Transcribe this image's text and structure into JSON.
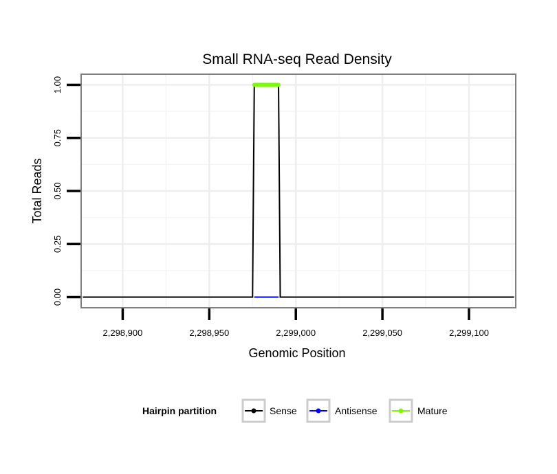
{
  "chart_data": {
    "type": "line",
    "title": "Small RNA-seq Read Density",
    "xlabel": "Genomic Position",
    "ylabel": "Total Reads",
    "xlim": [
      2298876,
      2299127
    ],
    "ylim": [
      -0.05,
      1.05
    ],
    "x_ticks": [
      2298900,
      2298950,
      2299000,
      2299050,
      2299100
    ],
    "x_tick_labels": [
      "2,298,900",
      "2,298,950",
      "2,299,000",
      "2,299,050",
      "2,299,100"
    ],
    "y_ticks": [
      0,
      0.25,
      0.5,
      0.75,
      1.0
    ],
    "y_tick_labels": [
      "0.00",
      "0.25",
      "0.50",
      "0.75",
      "1.00"
    ],
    "grid": true,
    "series": [
      {
        "name": "Sense",
        "color": "#000000",
        "x": [
          2298877,
          2298975,
          2298976,
          2298990,
          2298991,
          2299126
        ],
        "y": [
          0,
          0,
          1,
          1,
          0,
          0
        ]
      },
      {
        "name": "Antisense",
        "color": "#0000ff",
        "x": [
          2298976,
          2298990
        ],
        "y": [
          0,
          0
        ]
      },
      {
        "name": "Mature",
        "color": "#7cfc00",
        "x": [
          2298976,
          2298990
        ],
        "y": [
          1,
          1
        ]
      }
    ],
    "legend": {
      "title": "Hairpin partition",
      "position": "bottom",
      "entries": [
        "Sense",
        "Antisense",
        "Mature"
      ]
    }
  }
}
